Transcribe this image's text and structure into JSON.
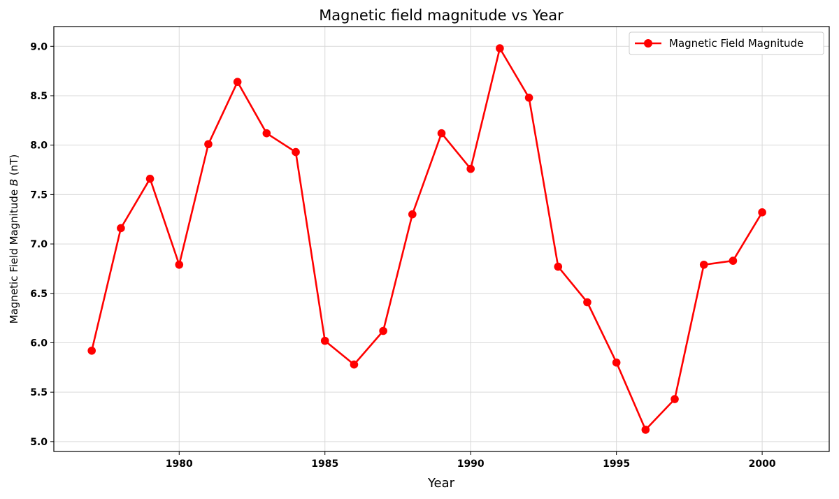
{
  "chart_data": {
    "type": "line",
    "title": "Magnetic field magnitude vs Year",
    "xlabel": "Year",
    "ylabel": "Magnetic Field Magnitude B (nT)",
    "ylabel_color": "#ff0000",
    "xlim": [
      1975.7,
      2002.3
    ],
    "ylim": [
      4.9,
      9.2
    ],
    "xticks": [
      1980,
      1985,
      1990,
      1995,
      2000
    ],
    "yticks": [
      5.0,
      5.5,
      6.0,
      6.5,
      7.0,
      7.5,
      8.0,
      8.5,
      9.0
    ],
    "grid": true,
    "legend_position": "top-right",
    "series": [
      {
        "name": "Magnetic Field Magnitude",
        "color": "#ff0000",
        "marker": "circle",
        "x": [
          1977,
          1978,
          1979,
          1980,
          1981,
          1982,
          1983,
          1984,
          1985,
          1986,
          1987,
          1988,
          1989,
          1990,
          1991,
          1992,
          1993,
          1994,
          1995,
          1996,
          1997,
          1998,
          1999,
          2000
        ],
        "y": [
          5.92,
          7.16,
          7.66,
          6.79,
          8.01,
          8.64,
          8.12,
          7.93,
          6.02,
          5.78,
          6.12,
          7.3,
          8.12,
          7.76,
          8.98,
          8.48,
          6.77,
          6.41,
          5.8,
          5.12,
          5.43,
          6.79,
          6.83,
          7.32
        ]
      }
    ]
  }
}
